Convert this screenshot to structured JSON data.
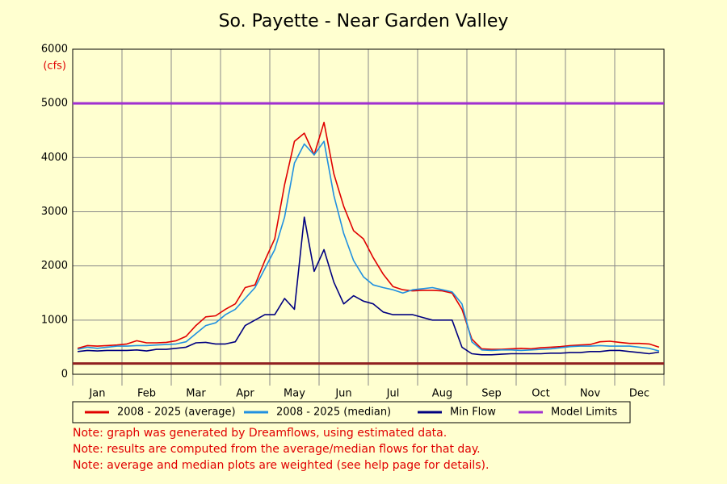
{
  "chart_data": {
    "type": "line",
    "title": "So. Payette - Near Garden Valley",
    "y_unit": "(cfs)",
    "categories": [
      null,
      null,
      "Jan",
      null,
      null,
      null,
      null,
      "Feb",
      null,
      null,
      null,
      null,
      "Mar",
      null,
      null,
      null,
      null,
      "Apr",
      null,
      null,
      null,
      null,
      "May",
      null,
      null,
      null,
      null,
      "Jun",
      null,
      null,
      null,
      null,
      "Jul",
      null,
      null,
      null,
      null,
      "Aug",
      null,
      null,
      null,
      null,
      "Sep",
      null,
      null,
      null,
      null,
      "Oct",
      null,
      null,
      null,
      null,
      "Nov",
      null,
      null,
      null,
      null,
      "Dec",
      null,
      null
    ],
    "series": [
      {
        "name": "2008 - 2025 (average)",
        "color": "#e00000",
        "values": [
          480,
          530,
          520,
          530,
          540,
          560,
          620,
          580,
          580,
          590,
          620,
          700,
          900,
          1060,
          1080,
          1200,
          1300,
          1600,
          1650,
          2100,
          2500,
          3500,
          4300,
          4450,
          4050,
          4650,
          3700,
          3100,
          2650,
          2500,
          2150,
          1850,
          1620,
          1560,
          1540,
          1550,
          1550,
          1540,
          1500,
          1200,
          650,
          470,
          460,
          460,
          470,
          480,
          470,
          490,
          500,
          510,
          530,
          540,
          550,
          600,
          610,
          590,
          570,
          570,
          560,
          500
        ]
      },
      {
        "name": "2008 - 2025 (median)",
        "color": "#2090e0",
        "values": [
          460,
          500,
          480,
          500,
          520,
          520,
          530,
          530,
          540,
          550,
          560,
          600,
          750,
          900,
          950,
          1100,
          1200,
          1400,
          1600,
          1950,
          2300,
          2900,
          3900,
          4250,
          4050,
          4300,
          3300,
          2600,
          2100,
          1800,
          1650,
          1600,
          1560,
          1500,
          1560,
          1580,
          1600,
          1560,
          1520,
          1300,
          600,
          450,
          440,
          450,
          450,
          440,
          450,
          460,
          470,
          490,
          510,
          520,
          520,
          530,
          520,
          520,
          520,
          500,
          480,
          430
        ]
      },
      {
        "name": "Min Flow",
        "color": "#000080",
        "values": [
          420,
          440,
          430,
          440,
          440,
          440,
          450,
          430,
          460,
          460,
          480,
          500,
          580,
          590,
          560,
          560,
          600,
          900,
          1000,
          1100,
          1100,
          1400,
          1200,
          2900,
          1900,
          2300,
          1700,
          1300,
          1450,
          1350,
          1300,
          1150,
          1100,
          1100,
          1100,
          1050,
          1000,
          1000,
          1000,
          500,
          380,
          360,
          360,
          370,
          380,
          380,
          380,
          380,
          390,
          390,
          400,
          400,
          420,
          420,
          440,
          440,
          420,
          400,
          380,
          410
        ]
      }
    ],
    "limit_lines": [
      {
        "name": "Model Limits",
        "value": 5000,
        "color": "#a030d0"
      },
      {
        "value": 200,
        "color": "#902020"
      }
    ],
    "ylim": [
      0,
      6000
    ],
    "yticks": [
      0,
      1000,
      2000,
      3000,
      4000,
      5000,
      6000
    ],
    "grid": true,
    "notes": [
      "Note: graph was generated by Dreamflows, using estimated data.",
      "Note: results are computed from the average/median flows for that day.",
      "Note: average and median plots are weighted (see help page for details)."
    ]
  }
}
